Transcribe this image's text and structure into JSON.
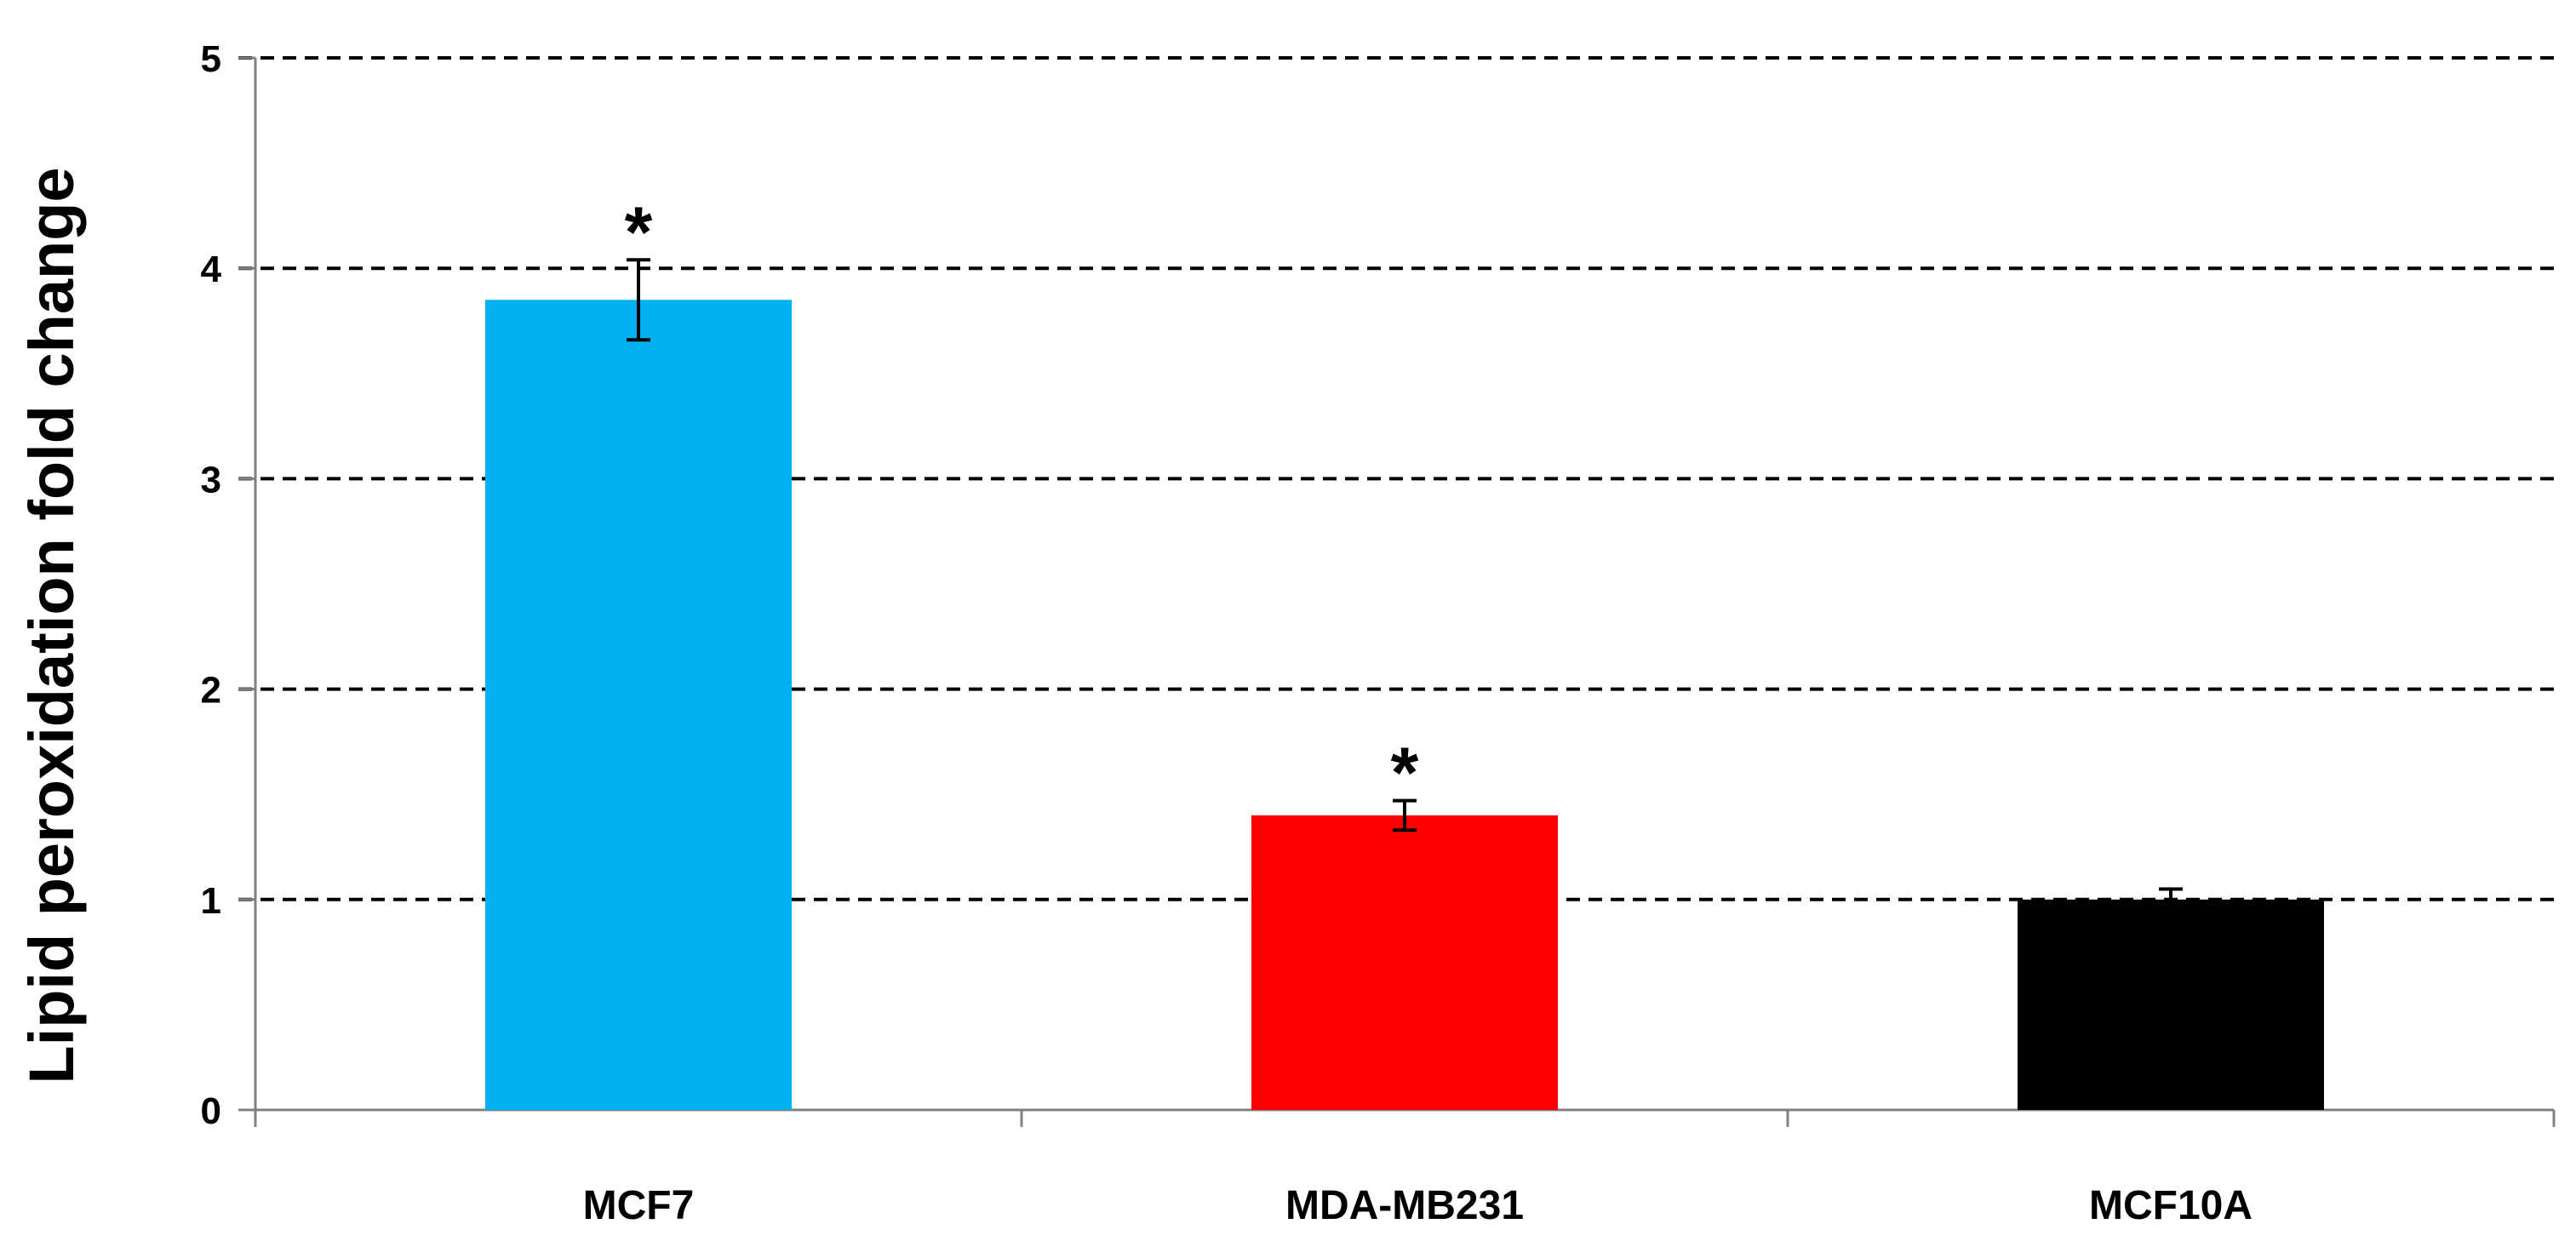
{
  "chart_data": {
    "type": "bar",
    "title": "",
    "xlabel": "",
    "ylabel": "Lipid peroxidation fold change",
    "ylim": [
      0,
      5
    ],
    "yticks": [
      "0",
      "1",
      "2",
      "3",
      "4",
      "5"
    ],
    "grid": "horizontal dashed",
    "legend": "none",
    "categories": [
      "MCF7",
      "MDA-MB231",
      "MCF10A"
    ],
    "values": [
      3.85,
      1.4,
      1.0
    ],
    "error": [
      0.19,
      0.07,
      0.05
    ],
    "significance": [
      "*",
      "*",
      ""
    ],
    "colors": [
      "#00b0f0",
      "#ff0000",
      "#000000"
    ]
  }
}
